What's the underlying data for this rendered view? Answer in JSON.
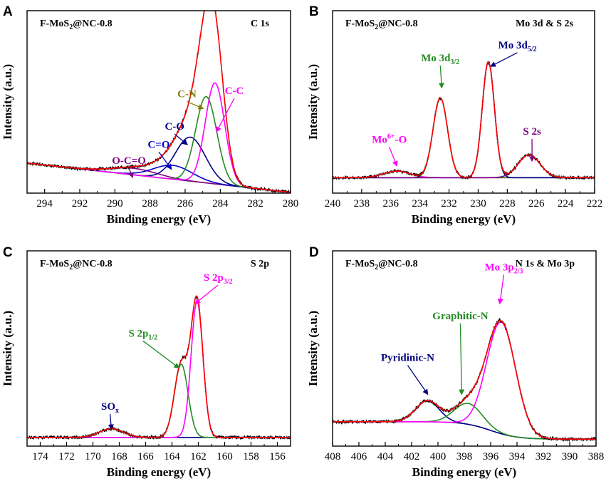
{
  "chart_data": [
    {
      "type": "line",
      "panel_label": "A",
      "sample": "F-MoS",
      "sample_sub": "2",
      "sample_suffix": "@NC-0.8",
      "region": "C 1s",
      "xlabel": "Binding energy (eV)",
      "ylabel": "Intensity (a.u.)",
      "xlim": [
        295,
        280
      ],
      "ylim": [
        0,
        1.12
      ],
      "xticks": [
        294,
        292,
        290,
        288,
        286,
        284,
        282,
        280
      ],
      "xtick_labels": [
        "294",
        "292",
        "290",
        "288",
        "286",
        "284",
        "282",
        "280"
      ],
      "background": {
        "a": 0.065,
        "b": 0.012,
        "xc": 285
      },
      "peaks": [
        {
          "name": "O-C=O",
          "center": 288.9,
          "amp": 0.04,
          "width": 1.3,
          "color": "#800080"
        },
        {
          "name": "C=O",
          "center": 286.7,
          "amp": 0.085,
          "width": 1.1,
          "color": "#0000cd"
        },
        {
          "name": "C-O",
          "center": 285.7,
          "amp": 0.27,
          "width": 0.85,
          "color": "#000080"
        },
        {
          "name": "C-N",
          "center": 284.8,
          "amp": 0.53,
          "width": 0.6,
          "color": "#228b22"
        },
        {
          "name": "C-C",
          "center": 284.3,
          "amp": 0.62,
          "width": 0.55,
          "color": "#ff00ff"
        }
      ],
      "annotations": [
        {
          "text": "O-C=O",
          "x": 289.2,
          "y": 0.17,
          "color": "#800080",
          "ax": 289.0,
          "ay": 0.1
        },
        {
          "text": "C=O",
          "x": 287.5,
          "y": 0.27,
          "color": "#0000cd",
          "ax": 286.8,
          "ay": 0.15
        },
        {
          "text": "C-O",
          "x": 286.6,
          "y": 0.38,
          "color": "#000080",
          "ax": 285.9,
          "ay": 0.3
        },
        {
          "text": "C-N",
          "x": 285.9,
          "y": 0.58,
          "color": "#808000",
          "ax": 285.0,
          "ay": 0.52
        },
        {
          "text": "C-C",
          "x": 283.2,
          "y": 0.6,
          "color": "#ff00ff",
          "ax": 284.2,
          "ay": 0.38
        }
      ]
    },
    {
      "type": "line",
      "panel_label": "B",
      "sample": "F-MoS",
      "sample_sub": "2",
      "sample_suffix": "@NC-0.8",
      "region": "Mo 3d & S 2s",
      "xlabel": "Binding energy (eV)",
      "ylabel": "Intensity (a.u.)",
      "xlim": [
        240,
        222
      ],
      "ylim": [
        0,
        1.12
      ],
      "xticks": [
        240,
        238,
        236,
        234,
        232,
        230,
        228,
        226,
        224,
        222
      ],
      "xtick_labels": [
        "240",
        "238",
        "236",
        "234",
        "232",
        "230",
        "228",
        "226",
        "224",
        "222"
      ],
      "background": {
        "a": 0.095,
        "b": 0.0,
        "xc": 231
      },
      "peaks": [
        {
          "name": "Mo6+-O",
          "center": 235.6,
          "amp": 0.04,
          "width": 0.9,
          "color": "#ff00ff"
        },
        {
          "name": "Mo 3d3/2",
          "center": 232.6,
          "amp": 0.49,
          "width": 0.5,
          "color": "#228b22"
        },
        {
          "name": "Mo 3d5/2",
          "center": 229.3,
          "amp": 0.71,
          "width": 0.42,
          "color": "#000080"
        },
        {
          "name": "S 2s",
          "center": 226.5,
          "amp": 0.14,
          "width": 0.75,
          "color": "#800080"
        }
      ],
      "annotations": [
        {
          "text": "Mo",
          "sup": "6+",
          "tail": "-O",
          "x": 236.1,
          "y": 0.3,
          "color": "#ff00ff",
          "ax": 235.6,
          "ay": 0.17
        },
        {
          "text": "Mo 3d",
          "sub": "3/2",
          "x": 232.6,
          "y": 0.8,
          "color": "#228b22",
          "ax": 232.5,
          "ay": 0.65
        },
        {
          "text": "Mo 3d",
          "sub": "5/2",
          "x": 227.3,
          "y": 0.88,
          "color": "#000080",
          "ax": 229.1,
          "ay": 0.78
        },
        {
          "text": "S 2s",
          "x": 226.3,
          "y": 0.35,
          "color": "#800080",
          "ax": 226.3,
          "ay": 0.2
        }
      ]
    },
    {
      "type": "line",
      "panel_label": "C",
      "sample": "F-MoS",
      "sample_sub": "2",
      "sample_suffix": "@NC-0.8",
      "region": "S 2p",
      "xlabel": "Binding energy (eV)",
      "ylabel": "Intensity (a.u.)",
      "xlim": [
        175,
        155
      ],
      "ylim": [
        0,
        1.12
      ],
      "xticks": [
        174,
        172,
        170,
        168,
        166,
        164,
        162,
        160,
        158,
        156
      ],
      "xtick_labels": [
        "174",
        "172",
        "170",
        "168",
        "166",
        "164",
        "162",
        "160",
        "158",
        "156"
      ],
      "background": {
        "a": 0.05,
        "b": 0.0,
        "xc": 165
      },
      "peaks": [
        {
          "name": "SOx",
          "center": 168.6,
          "amp": 0.05,
          "width": 0.9,
          "color": "#000080"
        },
        {
          "name": "S 2p1/2",
          "center": 163.3,
          "amp": 0.42,
          "width": 0.52,
          "color": "#228b22"
        },
        {
          "name": "S 2p3/2",
          "center": 162.1,
          "amp": 0.78,
          "width": 0.45,
          "color": "#ff00ff"
        }
      ],
      "annotations": [
        {
          "text": "SO",
          "sub": "x",
          "x": 168.7,
          "y": 0.2,
          "color": "#000080",
          "ax": 168.6,
          "ay": 0.1
        },
        {
          "text": "S 2p",
          "sub": "1/2",
          "x": 166.2,
          "y": 0.62,
          "color": "#228b22",
          "ax": 163.5,
          "ay": 0.45
        },
        {
          "text": "S 2p",
          "sub": "3/2",
          "x": 160.5,
          "y": 0.94,
          "color": "#ff00ff",
          "ax": 162.2,
          "ay": 0.82
        }
      ]
    },
    {
      "type": "line",
      "panel_label": "D",
      "sample": "F-MoS",
      "sample_sub": "2",
      "sample_suffix": "@NC-0.8",
      "region": "N 1s & Mo 3p",
      "xlabel": "Binding energy (eV)",
      "ylabel": "Intensity (a.u.)",
      "xlim": [
        408,
        388
      ],
      "ylim": [
        0,
        1.12
      ],
      "xticks": [
        408,
        406,
        404,
        402,
        400,
        398,
        396,
        394,
        392,
        390,
        388
      ],
      "xtick_labels": [
        "408",
        "406",
        "404",
        "402",
        "400",
        "398",
        "396",
        "394",
        "392",
        "390",
        "388"
      ],
      "background": {
        "a": 0.14,
        "b": 0.0,
        "xc": 398,
        "sigmoid_drop": 0.1,
        "sigmoid_center": 396
      },
      "peaks": [
        {
          "name": "Pyridinic-N",
          "center": 400.8,
          "amp": 0.12,
          "width": 0.9,
          "color": "#000080"
        },
        {
          "name": "Graphitic-N",
          "center": 397.7,
          "amp": 0.12,
          "width": 1.05,
          "color": "#228b22"
        },
        {
          "name": "Mo 3p2/3",
          "center": 395.2,
          "amp": 0.64,
          "width": 1.1,
          "color": "#ff00ff"
        }
      ],
      "annotations": [
        {
          "text": "Pyridinic-N",
          "x": 402.3,
          "y": 0.48,
          "color": "#000080",
          "ax": 400.8,
          "ay": 0.3
        },
        {
          "text": "Graphitic-N",
          "x": 398.3,
          "y": 0.72,
          "color": "#228b22",
          "ax": 398.2,
          "ay": 0.3
        },
        {
          "text": "Mo 3p",
          "sub": "2/3",
          "x": 395.0,
          "y": 1.0,
          "color": "#ff00ff",
          "ax": 395.3,
          "ay": 0.82
        }
      ]
    }
  ]
}
